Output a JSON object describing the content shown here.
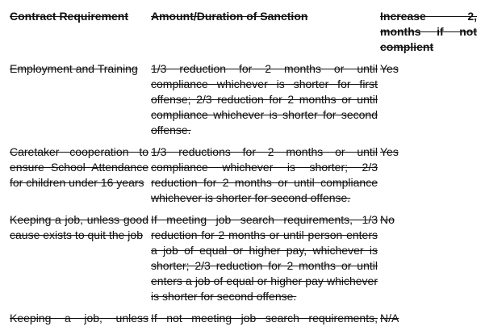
{
  "headers": [
    "Contract Requirement",
    "Amount/Duration of Sanction",
    "Increase 2, months if not complient"
  ],
  "rows": [
    {
      "requirement": "Employment and Training",
      "sanction": "1/3 reduction for 2 months or until compliance whichever is shorter for first offense; 2/3 reduction for 2 months or until compliance whichever is shorter for second offense.",
      "increase": "Yes"
    },
    {
      "requirement": "Caretaker cooperation to ensure School Attendance for children under 16 years",
      "sanction": "1/3 reductions for 2 months or until compliance whichever is shorter; 2/3 reduction for 2 months or until compliance whichever is shorter for second offense.",
      "increase": "Yes"
    },
    {
      "requirement": "Keeping a job, unless good cause exists to quit the job",
      "sanction": "If meeting job search requirements, 1/3 reduction for 2 months or until person enters a job of equal or higher pay, whichever is shorter; 2/3 reduction for 2 months or until enters a job of equal or higher pay whichever is shorter for second offense.",
      "increase": "No"
    },
    {
      "requirement": "Keeping a job, unless",
      "sanction": "If not meeting job search requirements,",
      "increase": "N/A"
    }
  ]
}
